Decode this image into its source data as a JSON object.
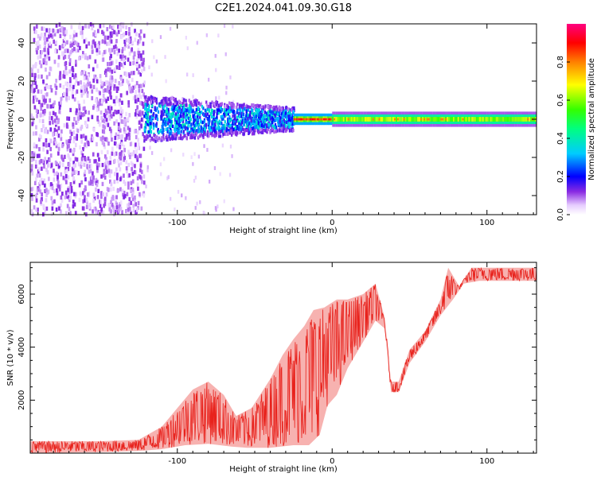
{
  "title": "C2E1.2024.041.09.30.G18",
  "chart_data": [
    {
      "type": "heatmap",
      "xlabel": "Height of straight line (km)",
      "ylabel": "Frequency (Hz)",
      "xlim": [
        -195,
        132
      ],
      "ylim": [
        -50,
        50
      ],
      "x_ticks": [
        -100,
        0,
        100
      ],
      "y_ticks": [
        -40,
        -20,
        0,
        20,
        40
      ],
      "colorbar": {
        "label": "Normalized spectral amplitude",
        "range": [
          0,
          1
        ],
        "ticks": [
          0.0,
          0.2,
          0.4,
          0.6,
          0.8
        ]
      },
      "regions": [
        {
          "x_range": [
            -195,
            -122
          ],
          "freq_range": [
            -50,
            50
          ],
          "amplitude": "0.0-0.2",
          "pattern": "scattered"
        },
        {
          "x_range": [
            -122,
            -25
          ],
          "freq_range": [
            -10,
            10
          ],
          "amplitude": "0.1-0.4",
          "pattern": "band"
        },
        {
          "x_range": [
            -25,
            0
          ],
          "freq_range": [
            -3,
            3
          ],
          "amplitude": "0.7-1.0",
          "pattern": "narrow-line"
        },
        {
          "x_range": [
            0,
            132
          ],
          "freq_range": [
            -4,
            4
          ],
          "amplitude": "0.3-0.7",
          "pattern": "steady-line"
        }
      ]
    },
    {
      "type": "line",
      "xlabel": "Height of straight line (km)",
      "ylabel": "SNR (10 * v/v)",
      "xlim": [
        -195,
        132
      ],
      "ylim": [
        0,
        7200
      ],
      "x_ticks": [
        -100,
        0,
        100
      ],
      "y_ticks": [
        2000,
        4000,
        6000
      ],
      "color": "#e8221c",
      "series": [
        {
          "envelope_lo": [
            [
              -195,
              0
            ],
            [
              -150,
              40
            ],
            [
              -125,
              80
            ],
            [
              -110,
              150
            ],
            [
              -95,
              300
            ],
            [
              -80,
              350
            ],
            [
              -65,
              250
            ],
            [
              -55,
              200
            ],
            [
              -40,
              200
            ],
            [
              -25,
              300
            ],
            [
              -15,
              300
            ],
            [
              -8,
              700
            ],
            [
              -3,
              1800
            ],
            [
              3,
              2200
            ],
            [
              10,
              3200
            ],
            [
              20,
              4200
            ],
            [
              28,
              5000
            ],
            [
              34,
              4700
            ],
            [
              38,
              2300
            ],
            [
              43,
              2300
            ],
            [
              50,
              3400
            ],
            [
              60,
              4200
            ],
            [
              70,
              5200
            ],
            [
              78,
              5800
            ],
            [
              85,
              6400
            ],
            [
              95,
              6500
            ],
            [
              110,
              6500
            ],
            [
              132,
              6500
            ]
          ],
          "envelope_hi": [
            [
              -195,
              450
            ],
            [
              -150,
              450
            ],
            [
              -125,
              500
            ],
            [
              -110,
              1000
            ],
            [
              -100,
              1700
            ],
            [
              -90,
              2400
            ],
            [
              -80,
              2700
            ],
            [
              -70,
              2200
            ],
            [
              -62,
              1400
            ],
            [
              -52,
              1700
            ],
            [
              -40,
              2800
            ],
            [
              -32,
              3700
            ],
            [
              -25,
              4300
            ],
            [
              -18,
              4800
            ],
            [
              -12,
              5400
            ],
            [
              -5,
              5500
            ],
            [
              3,
              5800
            ],
            [
              10,
              5800
            ],
            [
              20,
              6000
            ],
            [
              28,
              6400
            ],
            [
              34,
              5100
            ],
            [
              38,
              2700
            ],
            [
              43,
              2700
            ],
            [
              50,
              3900
            ],
            [
              60,
              4600
            ],
            [
              70,
              5800
            ],
            [
              75,
              7000
            ],
            [
              82,
              6300
            ],
            [
              90,
              7000
            ],
            [
              110,
              7000
            ],
            [
              132,
              7000
            ]
          ]
        }
      ]
    }
  ]
}
